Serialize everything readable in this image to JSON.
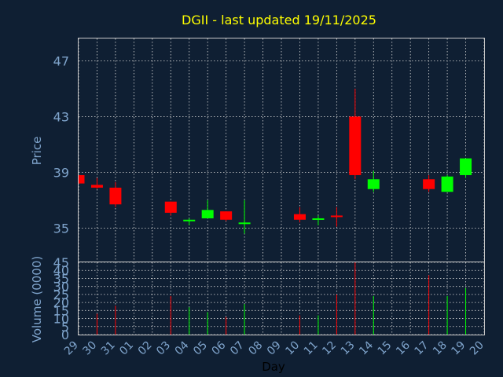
{
  "chart_data": {
    "type": "candlestick",
    "title": "DGII - last updated 19/11/2025",
    "xlabel": "Day",
    "price_ylabel": "Price",
    "volume_ylabel": "Volume (0000)",
    "x_tick_labels": [
      "29",
      "30",
      "31",
      "01",
      "02",
      "03",
      "04",
      "05",
      "06",
      "07",
      "08",
      "09",
      "10",
      "11",
      "12",
      "13",
      "14",
      "15",
      "16",
      "17",
      "18",
      "19",
      "20"
    ],
    "price_ticks": [
      "35",
      "39",
      "43",
      "47"
    ],
    "volume_ticks": [
      "0",
      "5",
      "10",
      "15",
      "20",
      "25",
      "30",
      "35",
      "40",
      "45"
    ],
    "price_ylim": [
      32.6,
      48.6
    ],
    "volume_ylim": [
      0,
      45
    ],
    "up_color": "#00ff00",
    "down_color": "#ff0000",
    "candles": [
      {
        "day": "29",
        "open": 38.8,
        "high": 38.8,
        "low": 38.2,
        "close": 38.2,
        "volume": 0
      },
      {
        "day": "30",
        "open": 38.1,
        "high": 38.6,
        "low": 37.8,
        "close": 37.9,
        "volume": 13
      },
      {
        "day": "31",
        "open": 37.9,
        "high": 38.3,
        "low": 36.5,
        "close": 36.7,
        "volume": 18
      },
      {
        "day": "03",
        "open": 36.9,
        "high": 36.9,
        "low": 35.9,
        "close": 36.1,
        "volume": 24
      },
      {
        "day": "04",
        "open": 35.5,
        "high": 35.7,
        "low": 35.2,
        "close": 35.6,
        "volume": 17
      },
      {
        "day": "05",
        "open": 35.7,
        "high": 37.0,
        "low": 35.7,
        "close": 36.3,
        "volume": 14
      },
      {
        "day": "06",
        "open": 36.2,
        "high": 36.2,
        "low": 35.5,
        "close": 35.6,
        "volume": 11
      },
      {
        "day": "07",
        "open": 35.3,
        "high": 37.0,
        "low": 34.6,
        "close": 35.4,
        "volume": 19
      },
      {
        "day": "10",
        "open": 36.0,
        "high": 36.5,
        "low": 35.4,
        "close": 35.6,
        "volume": 12
      },
      {
        "day": "11",
        "open": 35.6,
        "high": 35.9,
        "low": 35.2,
        "close": 35.7,
        "volume": 12
      },
      {
        "day": "12",
        "open": 35.9,
        "high": 36.5,
        "low": 35.1,
        "close": 35.8,
        "volume": 25
      },
      {
        "day": "13",
        "open": 43.0,
        "high": 45.0,
        "low": 38.5,
        "close": 38.8,
        "volume": 45
      },
      {
        "day": "14",
        "open": 37.8,
        "high": 39.1,
        "low": 37.6,
        "close": 38.5,
        "volume": 24
      },
      {
        "day": "17",
        "open": 38.5,
        "high": 38.8,
        "low": 37.6,
        "close": 37.8,
        "volume": 37
      },
      {
        "day": "18",
        "open": 37.6,
        "high": 38.8,
        "low": 37.6,
        "close": 38.7,
        "volume": 24
      },
      {
        "day": "19",
        "open": 38.8,
        "high": 40.0,
        "low": 38.6,
        "close": 40.0,
        "volume": 29
      }
    ]
  }
}
